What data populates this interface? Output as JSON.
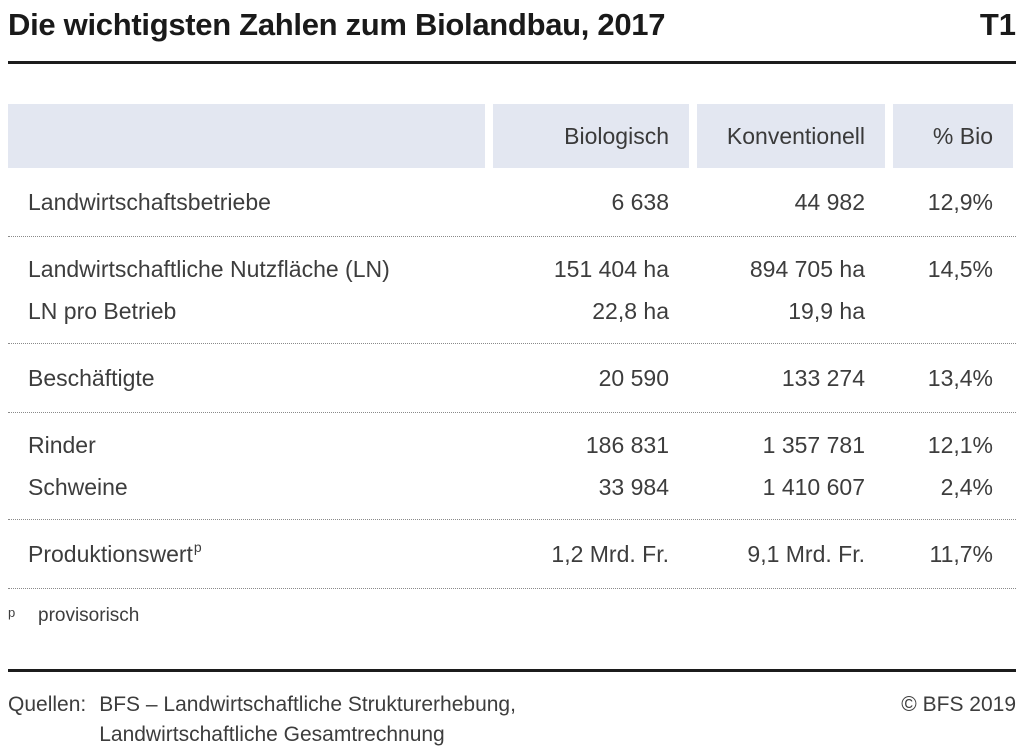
{
  "header": {
    "title": "Die wichtigsten Zahlen zum Biolandbau, 2017",
    "tag": "T1"
  },
  "table": {
    "columns": [
      "",
      "Biologisch",
      "Konventionell",
      "% Bio"
    ],
    "sections": [
      {
        "rows": [
          {
            "label": "Landwirtschaftsbetriebe",
            "bio": "6 638",
            "konv": "44 982",
            "pct": "12,9%"
          }
        ]
      },
      {
        "rows": [
          {
            "label": "Landwirtschaftliche Nutzfläche (LN)",
            "bio": "151 404 ha",
            "konv": "894 705 ha",
            "pct": "14,5%"
          },
          {
            "label": "LN pro Betrieb",
            "bio": "22,8 ha",
            "konv": "19,9 ha",
            "pct": ""
          }
        ]
      },
      {
        "rows": [
          {
            "label": "Beschäftigte",
            "bio": "20 590",
            "konv": "133 274",
            "pct": "13,4%"
          }
        ]
      },
      {
        "rows": [
          {
            "label": "Rinder",
            "bio": "186 831",
            "konv": "1 357 781",
            "pct": "12,1%"
          },
          {
            "label": "Schweine",
            "bio": "33 984",
            "konv": "1 410 607",
            "pct": "2,4%"
          }
        ]
      },
      {
        "rows": [
          {
            "label": "Produktionswert",
            "label_sup": "p",
            "bio": "1,2 Mrd. Fr.",
            "konv": "9,1 Mrd. Fr.",
            "pct": "11,7%"
          }
        ]
      }
    ]
  },
  "footnote": {
    "marker": "p",
    "text": "provisorisch"
  },
  "footer": {
    "sources_label": "Quellen:",
    "sources": [
      "BFS – Landwirtschaftliche Strukturerhebung,",
      "Landwirtschaftliche Gesamtrechnung"
    ],
    "copyright": "© BFS 2019"
  },
  "colors": {
    "header_bg": "#e3e7f1",
    "text": "#3d3d3d",
    "title": "#1a1a1a",
    "dotted": "#8a8a8a",
    "rule": "#1c1c1c"
  },
  "chart_data": {
    "type": "table",
    "title": "Die wichtigsten Zahlen zum Biolandbau, 2017",
    "table_tag": "T1",
    "columns": [
      "",
      "Biologisch",
      "Konventionell",
      "% Bio"
    ],
    "rows": [
      [
        "Landwirtschaftsbetriebe",
        "6 638",
        "44 982",
        "12,9%"
      ],
      [
        "Landwirtschaftliche Nutzfläche (LN)",
        "151 404 ha",
        "894 705 ha",
        "14,5%"
      ],
      [
        "LN pro Betrieb",
        "22,8 ha",
        "19,9 ha",
        ""
      ],
      [
        "Beschäftigte",
        "20 590",
        "133 274",
        "13,4%"
      ],
      [
        "Rinder",
        "186 831",
        "1 357 781",
        "12,1%"
      ],
      [
        "Schweine",
        "33 984",
        "1 410 607",
        "2,4%"
      ],
      [
        "Produktionswert (p)",
        "1,2 Mrd. Fr.",
        "9,1 Mrd. Fr.",
        "11,7%"
      ]
    ],
    "footnote": "p provisorisch",
    "sources": "Quellen: BFS – Landwirtschaftliche Strukturerhebung, Landwirtschaftliche Gesamtrechnung",
    "copyright": "© BFS 2019"
  }
}
